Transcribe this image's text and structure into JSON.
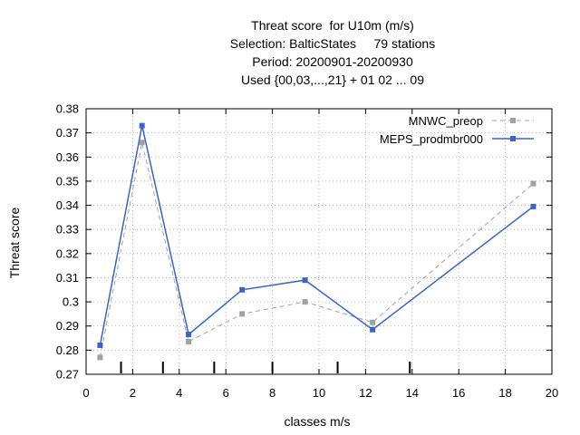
{
  "chart_data": {
    "type": "line",
    "title_lines": [
      "Threat score  for U10m (m/s)",
      "Selection: BalticStates     79 stations",
      "Period: 20200901-20200930",
      "Used {00,03,...,21} + 01 02 ... 09"
    ],
    "xlabel": "classes m/s",
    "ylabel": "Threat score",
    "xlim": [
      0,
      20
    ],
    "ylim": [
      0.27,
      0.38
    ],
    "xticks": [
      "0",
      "2",
      "4",
      "6",
      "8",
      "10",
      "12",
      "14",
      "16",
      "18",
      "20"
    ],
    "yticks": [
      "0.27",
      "0.28",
      "0.29",
      "0.3",
      "0.31",
      "0.32",
      "0.33",
      "0.34",
      "0.35",
      "0.36",
      "0.37",
      "0.38"
    ],
    "class_boundaries": [
      1.5,
      3.3,
      5.5,
      8.0,
      10.8,
      13.9
    ],
    "legend_position": "top-right",
    "series": [
      {
        "name": "MNWC_preop",
        "color": "#a0a0a0",
        "style": "dashed",
        "x": [
          0.6,
          2.4,
          4.4,
          6.7,
          9.4,
          12.3,
          19.2
        ],
        "values": [
          0.277,
          0.366,
          0.2835,
          0.295,
          0.3,
          0.2915,
          0.349
        ]
      },
      {
        "name": "MEPS_prodmbr000",
        "color": "#3a64c8",
        "style": "solid",
        "x": [
          0.6,
          2.4,
          4.4,
          6.7,
          9.4,
          12.3,
          19.2
        ],
        "values": [
          0.282,
          0.373,
          0.2865,
          0.305,
          0.309,
          0.2885,
          0.3395
        ]
      }
    ]
  }
}
